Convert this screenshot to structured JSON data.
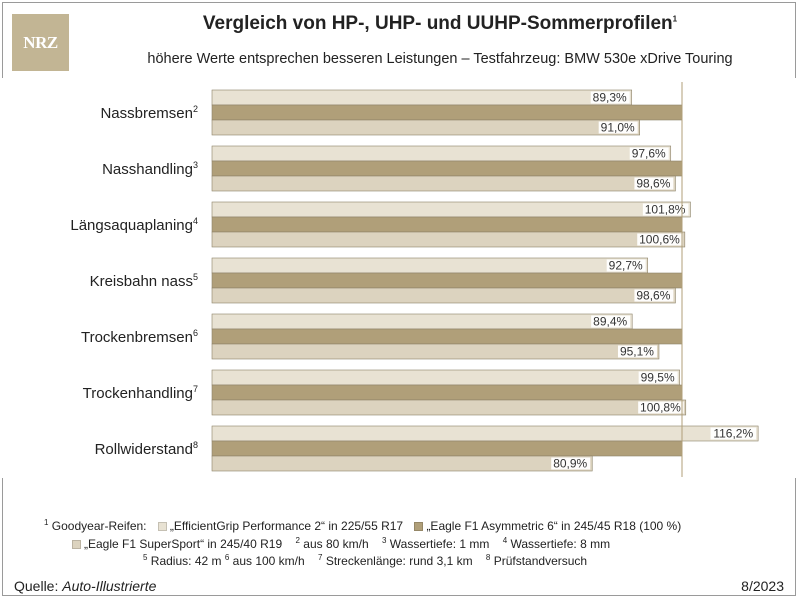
{
  "logo": "NRZ",
  "title": "Vergleich von HP-, UHP- und UUHP-Sommerprofilen",
  "title_sup": "1",
  "subtitle": "höhere Werte entsprechen besseren Leistungen – Testfahrzeug: BMW 530e xDrive Touring",
  "chart_data": {
    "type": "bar",
    "orientation": "horizontal",
    "baseline_pct": 100,
    "categories": [
      {
        "label": "Nassbremsen",
        "sup": "2"
      },
      {
        "label": "Nasshandling",
        "sup": "3"
      },
      {
        "label": "Längsaquaplaning",
        "sup": "4"
      },
      {
        "label": "Kreisbahn nass",
        "sup": "5"
      },
      {
        "label": "Trockenbremsen",
        "sup": "6"
      },
      {
        "label": "Trockenhandling",
        "sup": "7"
      },
      {
        "label": "Rollwiderstand",
        "sup": "8"
      }
    ],
    "series": [
      {
        "name": "„EfficientGrip Performance 2“ in 225/55 R17",
        "color": "#e8e2d3",
        "values": [
          89.3,
          97.6,
          101.8,
          92.7,
          89.4,
          99.5,
          116.2
        ],
        "labels": [
          "89,3%",
          "97,6%",
          "101,8%",
          "92,7%",
          "89,4%",
          "99,5%",
          "116,2%"
        ]
      },
      {
        "name": "„Eagle F1 Asymmetric 6“ in 245/45 R18 (100 %)",
        "color": "#b09f79",
        "values": [
          100,
          100,
          100,
          100,
          100,
          100,
          100
        ],
        "labels": [
          "",
          "",
          "",
          "",
          "",
          "",
          ""
        ]
      },
      {
        "name": "„Eagle F1 SuperSport“ in 245/40 R19",
        "color": "#dcd3bf",
        "values": [
          91.0,
          98.6,
          100.6,
          98.6,
          95.1,
          100.8,
          80.9
        ],
        "labels": [
          "91,0%",
          "98,6%",
          "100,6%",
          "98,6%",
          "95,1%",
          "100,8%",
          "80,9%"
        ]
      }
    ]
  },
  "footnotes": {
    "f1_prefix": "Goodyear-Reifen:",
    "f1_sup": "1",
    "f2": "aus 80 km/h",
    "f3": "Wassertiefe: 1 mm",
    "f4": "Wassertiefe: 8 mm",
    "f5": "Radius: 42 m",
    "f6": "aus 100 km/h",
    "f7": "Streckenlänge: rund 3,1 km",
    "f8": "Prüfstandversuch"
  },
  "source_label": "Quelle:",
  "source_name": "Auto-Illustrierte",
  "date": "8/2023"
}
